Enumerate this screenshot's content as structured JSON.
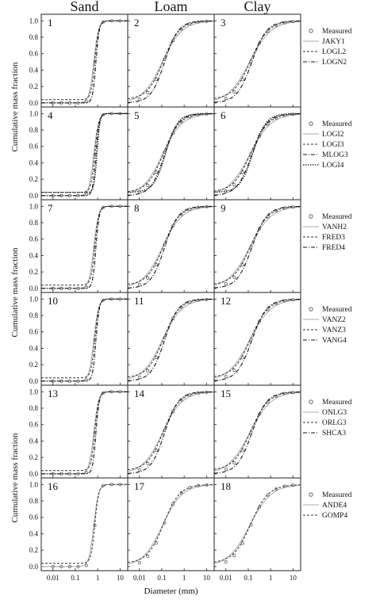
{
  "figure": {
    "column_titles": [
      "Sand",
      "Loam",
      "Clay"
    ],
    "xlabel": "Diameter (mm)",
    "ylabel": "Cumulative mass fraction",
    "x_ticks": [
      "0.01",
      "0.1",
      "1",
      "10"
    ],
    "y_ticks": [
      "0.0",
      "0.2",
      "0.4",
      "0.6",
      "0.8",
      "1.0"
    ]
  },
  "chart_data": {
    "type": "line",
    "x_scale": "log",
    "xlim": [
      0.003,
      22
    ],
    "ylim": [
      -0.05,
      1.08
    ],
    "grid": false,
    "soils": {
      "Sand": {
        "center": 0.75,
        "slope": 5.0
      },
      "Loam": {
        "center": 0.12,
        "slope": 1.2
      },
      "Clay": {
        "center": 0.13,
        "slope": 1.1
      }
    },
    "rows": [
      {
        "panels": [
          1,
          2,
          3
        ],
        "legend": [
          "Measured",
          "JAKY1",
          "LOGL2",
          "LOGN2"
        ]
      },
      {
        "panels": [
          4,
          5,
          6
        ],
        "legend": [
          "Measured",
          "LOGI2",
          "LOGI3",
          "MLOG3",
          "LOGI4"
        ]
      },
      {
        "panels": [
          7,
          8,
          9
        ],
        "legend": [
          "Measured",
          "VANH2",
          "FRED3",
          "FRED4"
        ]
      },
      {
        "panels": [
          10,
          11,
          12
        ],
        "legend": [
          "Measured",
          "VANZ2",
          "VANZ3",
          "VANG4"
        ]
      },
      {
        "panels": [
          13,
          14,
          15
        ],
        "legend": [
          "Measured",
          "ONLG3",
          "ORLG3",
          "SHCA3"
        ]
      },
      {
        "panels": [
          16,
          17,
          18
        ],
        "legend": [
          "Measured",
          "ANDE4",
          "GOMP4"
        ]
      }
    ]
  }
}
